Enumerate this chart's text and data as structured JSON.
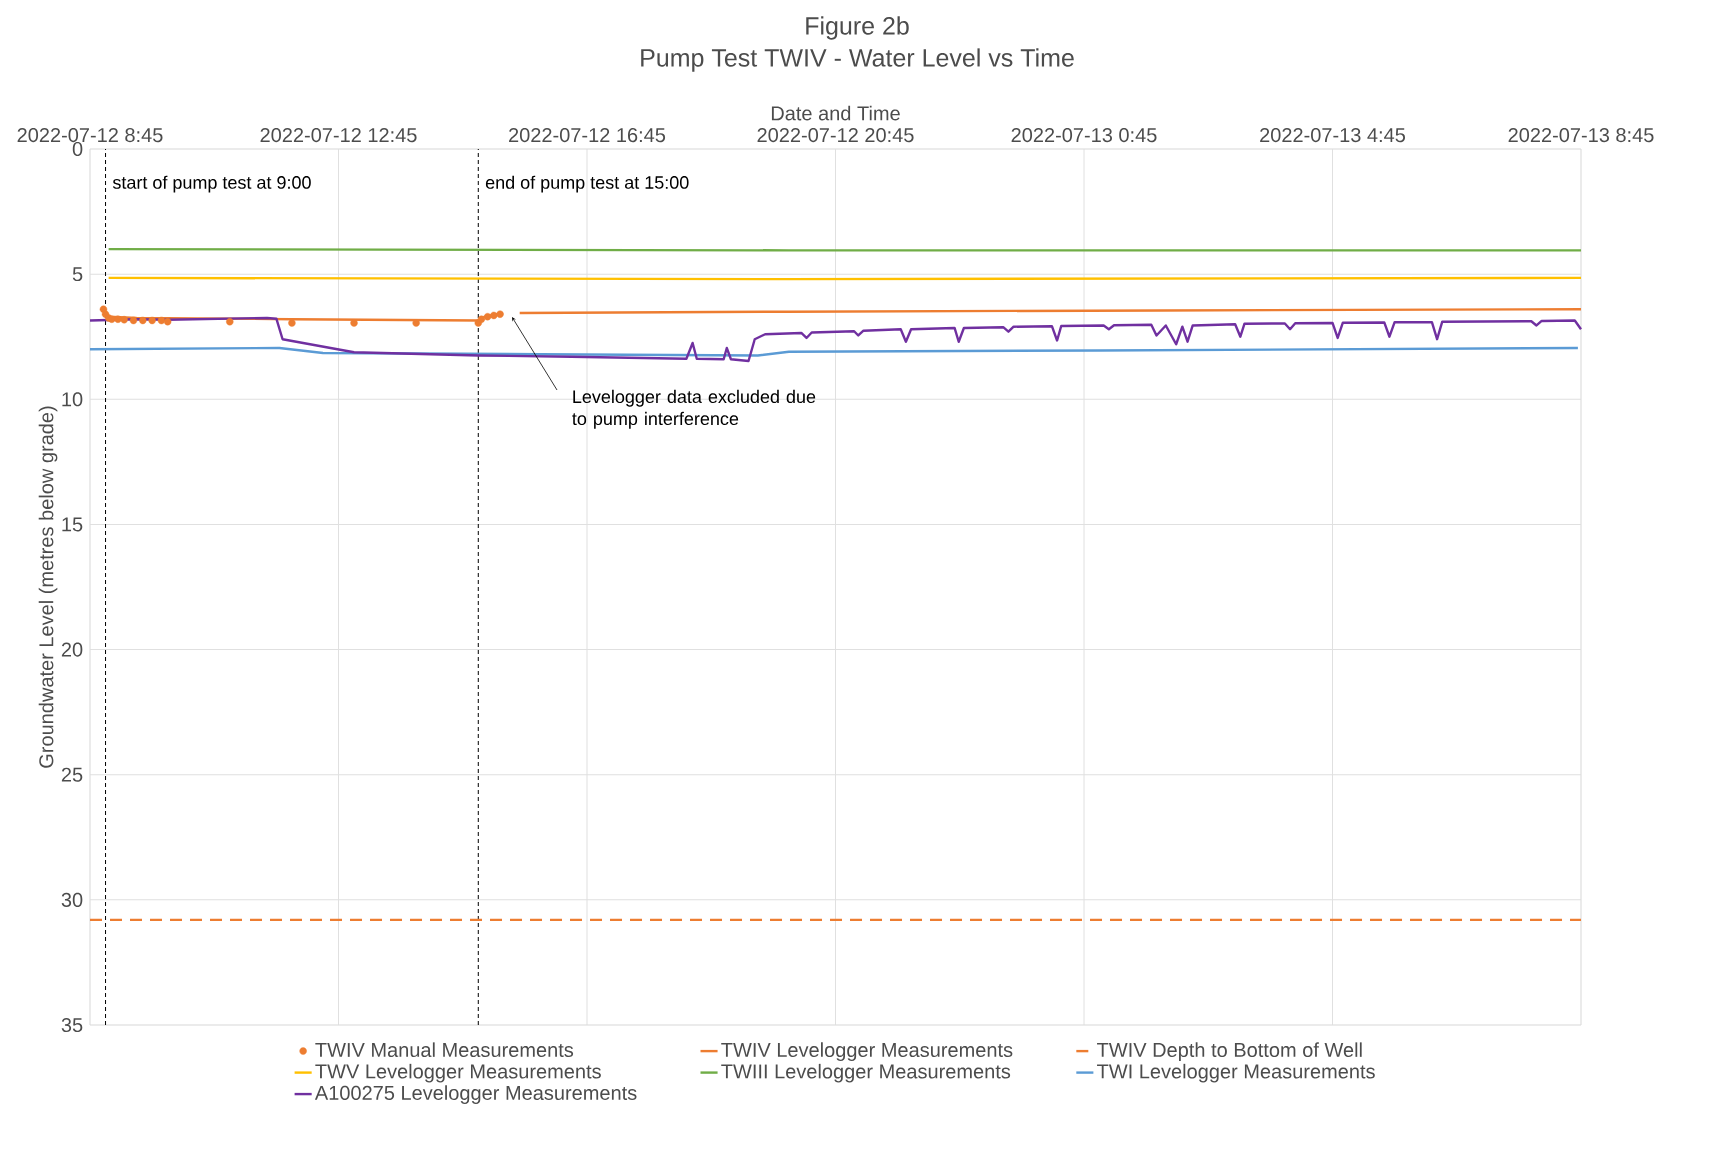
{
  "chart_data": {
    "type": "line",
    "title": "Figure 2b",
    "subtitle": "Pump Test TWIV - Water Level vs Time",
    "xlabel": "Date and Time",
    "ylabel": "Groundwater Level (metres below grade)",
    "xlim": [
      "2022-07-12T08:45",
      "2022-07-13T08:45"
    ],
    "xticks": [
      {
        "value": "2022-07-12T08:45",
        "label": "2022-07-12 8:45"
      },
      {
        "value": "2022-07-12T12:45",
        "label": "2022-07-12 12:45"
      },
      {
        "value": "2022-07-12T16:45",
        "label": "2022-07-12 16:45"
      },
      {
        "value": "2022-07-12T20:45",
        "label": "2022-07-12 20:45"
      },
      {
        "value": "2022-07-13T00:45",
        "label": "2022-07-13 0:45"
      },
      {
        "value": "2022-07-13T04:45",
        "label": "2022-07-13 4:45"
      },
      {
        "value": "2022-07-13T08:45",
        "label": "2022-07-13 8:45"
      }
    ],
    "ylim": [
      35,
      0
    ],
    "yticks": [
      0,
      5,
      10,
      15,
      20,
      25,
      30,
      35
    ],
    "grid": true,
    "legend": "bottom",
    "series": [
      {
        "name": "TWIV Manual Measurements",
        "type": "scatter",
        "marker": "circle",
        "color": "#ed7d31",
        "x": [
          "2022-07-12T08:58",
          "2022-07-12T09:00",
          "2022-07-12T09:03",
          "2022-07-12T09:06",
          "2022-07-12T09:12",
          "2022-07-12T09:18",
          "2022-07-12T09:27",
          "2022-07-12T09:36",
          "2022-07-12T09:45",
          "2022-07-12T09:54",
          "2022-07-12T10:00",
          "2022-07-12T11:00",
          "2022-07-12T12:00",
          "2022-07-12T13:00",
          "2022-07-12T14:00",
          "2022-07-12T15:00",
          "2022-07-12T15:03",
          "2022-07-12T15:09",
          "2022-07-12T15:15",
          "2022-07-12T15:21"
        ],
        "values": [
          6.4,
          6.6,
          6.75,
          6.8,
          6.8,
          6.82,
          6.85,
          6.85,
          6.85,
          6.85,
          6.9,
          6.9,
          6.95,
          6.95,
          6.95,
          6.95,
          6.8,
          6.7,
          6.65,
          6.6
        ]
      },
      {
        "name": "TWIV Levelogger Measurements",
        "color": "#ed7d31",
        "x": [
          "2022-07-12T08:57",
          "2022-07-12T09:03",
          "2022-07-12T09:30",
          "2022-07-12T12:00",
          "2022-07-12T15:00",
          "2022-07-12T15:06",
          "2022-07-12T15:24",
          "2022-07-12T15:33",
          "2022-07-12T15:40",
          "2022-07-12T20:00",
          "2022-07-13T02:00",
          "2022-07-13T08:45"
        ],
        "values": [
          6.3,
          6.7,
          6.75,
          6.8,
          6.85,
          6.7,
          6.55,
          null,
          6.55,
          6.5,
          6.45,
          6.4
        ]
      },
      {
        "name": "TWIV Depth to Bottom of Well",
        "line_style": "dashed",
        "color": "#ed7d31",
        "x": [
          "2022-07-12T08:45",
          "2022-07-13T08:45"
        ],
        "values": [
          30.8,
          30.8
        ]
      },
      {
        "name": "TWV Levelogger Measurements",
        "color": "#ffc000",
        "x": [
          "2022-07-12T09:03",
          "2022-07-12T20:00",
          "2022-07-13T08:45"
        ],
        "values": [
          5.15,
          5.2,
          5.15
        ]
      },
      {
        "name": "TWIII Levelogger Measurements",
        "color": "#70ad47",
        "x": [
          "2022-07-12T09:03",
          "2022-07-12T20:00",
          "2022-07-13T08:45"
        ],
        "values": [
          4.0,
          4.05,
          4.05
        ]
      },
      {
        "name": "TWI Levelogger Measurements",
        "color": "#5b9bd5",
        "x": [
          "2022-07-12T08:45",
          "2022-07-12T11:48",
          "2022-07-12T12:30",
          "2022-07-12T16:00",
          "2022-07-12T19:30",
          "2022-07-12T20:00",
          "2022-07-13T01:00",
          "2022-07-13T08:42"
        ],
        "values": [
          8.0,
          7.95,
          8.15,
          8.2,
          8.25,
          8.1,
          8.05,
          7.95
        ]
      },
      {
        "name": "A100275 Levelogger Measurements",
        "color": "#7030a0",
        "x": [
          "2022-07-12T08:45",
          "2022-07-12T09:30",
          "2022-07-12T10:00",
          "2022-07-12T11:36",
          "2022-07-12T11:45",
          "2022-07-12T11:51",
          "2022-07-12T12:36",
          "2022-07-12T13:00",
          "2022-07-12T15:00",
          "2022-07-12T16:30",
          "2022-07-12T18:21",
          "2022-07-12T18:27",
          "2022-07-12T18:31",
          "2022-07-12T18:57",
          "2022-07-12T19:00",
          "2022-07-12T19:04",
          "2022-07-12T19:21",
          "2022-07-12T19:27",
          "2022-07-12T19:37",
          "2022-07-12T20:12",
          "2022-07-12T20:17",
          "2022-07-12T20:22",
          "2022-07-12T21:03",
          "2022-07-12T21:07",
          "2022-07-12T21:12",
          "2022-07-12T21:48",
          "2022-07-12T21:53",
          "2022-07-12T21:58",
          "2022-07-12T22:40",
          "2022-07-12T22:44",
          "2022-07-12T22:49",
          "2022-07-12T23:27",
          "2022-07-12T23:32",
          "2022-07-12T23:37",
          "2022-07-13T00:14",
          "2022-07-13T00:19",
          "2022-07-13T00:23",
          "2022-07-13T01:04",
          "2022-07-13T01:09",
          "2022-07-13T01:14",
          "2022-07-13T01:50",
          "2022-07-13T01:55",
          "2022-07-13T02:04",
          "2022-07-13T02:14",
          "2022-07-13T02:20",
          "2022-07-13T02:25",
          "2022-07-13T02:30",
          "2022-07-13T03:11",
          "2022-07-13T03:16",
          "2022-07-13T03:20",
          "2022-07-13T03:59",
          "2022-07-13T04:04",
          "2022-07-13T04:09",
          "2022-07-13T04:45",
          "2022-07-13T04:50",
          "2022-07-13T04:55",
          "2022-07-13T05:35",
          "2022-07-13T05:40",
          "2022-07-13T05:45",
          "2022-07-13T06:21",
          "2022-07-13T06:26",
          "2022-07-13T06:31",
          "2022-07-13T07:57",
          "2022-07-13T08:02",
          "2022-07-13T08:07",
          "2022-07-13T08:39",
          "2022-07-13T08:45"
        ],
        "values": [
          6.85,
          6.8,
          6.82,
          6.75,
          6.78,
          7.6,
          7.94,
          8.12,
          8.25,
          8.3,
          8.38,
          7.75,
          8.38,
          8.4,
          7.95,
          8.4,
          8.47,
          7.6,
          7.4,
          7.35,
          7.55,
          7.33,
          7.28,
          7.45,
          7.26,
          7.2,
          7.7,
          7.2,
          7.15,
          7.7,
          7.15,
          7.12,
          7.3,
          7.1,
          7.08,
          7.65,
          7.07,
          7.05,
          7.2,
          7.04,
          7.02,
          7.45,
          7.05,
          7.8,
          7.1,
          7.7,
          7.05,
          7.0,
          7.5,
          6.98,
          6.97,
          7.2,
          6.96,
          6.95,
          7.55,
          6.94,
          6.93,
          7.5,
          6.92,
          6.92,
          7.6,
          6.9,
          6.88,
          7.05,
          6.87,
          6.85,
          7.2
        ]
      }
    ],
    "ref_lines": [
      {
        "axis": "x",
        "value": "2022-07-12T09:00",
        "label": "start of pump test at 9:00",
        "color": "#000000",
        "line_style": "dashed"
      },
      {
        "axis": "x",
        "value": "2022-07-12T15:00",
        "label": "end of pump test at 15:00",
        "color": "#000000",
        "line_style": "dashed"
      }
    ],
    "annotations": [
      "Levelogger data excluded due to pump interference"
    ]
  }
}
